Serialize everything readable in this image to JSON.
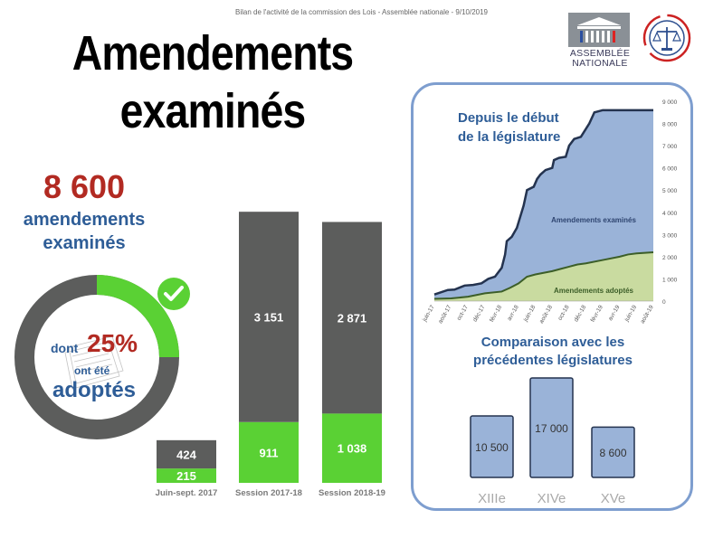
{
  "header": {
    "caption": "Bilan de l'activité de la commission des Lois - Assemblée nationale - 9/10/2019"
  },
  "title": {
    "line1": "Amendements",
    "line2": "examinés"
  },
  "logos": {
    "assemblee_line1": "ASSEMBLÉE",
    "assemblee_line2": "NATIONALE"
  },
  "kpi": {
    "number": "8 600",
    "label_line1": "amendements",
    "label_line2": "examinés",
    "donut_pct": "25%",
    "donut_fraction": 0.25,
    "donut_dont": "dont",
    "donut_mid": "ont été",
    "donut_adopted": "adoptés"
  },
  "colors": {
    "gray": "#5c5d5c",
    "green": "#5ad134",
    "blue_fill": "#9ab3d8",
    "blue_line": "#24334f",
    "green_fill": "#c9dba0",
    "green_line": "#3c5e28",
    "red": "#b22a22",
    "blue_text": "#2e5d97",
    "panel_border": "#7e9ecf"
  },
  "chart_data": [
    {
      "type": "bar",
      "title": "",
      "categories": [
        "Juin-sept. 2017",
        "Session 2017-18",
        "Session 2018-19"
      ],
      "series": [
        {
          "name": "",
          "values": [
            215,
            911,
            1038
          ],
          "labels": [
            "215",
            "911",
            "1 038"
          ],
          "color": "#5ad134"
        },
        {
          "name": "",
          "values": [
            424,
            3151,
            2871
          ],
          "labels": [
            "424",
            "3 151",
            "2 871"
          ],
          "color": "#5c5d5c"
        }
      ],
      "stacked": true,
      "ylim": [
        0,
        4200
      ]
    },
    {
      "type": "area",
      "title": "Depuis le début de la législature",
      "title_line1": "Depuis le début",
      "title_line2": "de la législature",
      "x": [
        "juin-17",
        "août-17",
        "oct-17",
        "déc-17",
        "févr-18",
        "avr-18",
        "juin-18",
        "août-18",
        "oct-18",
        "déc-18",
        "févr-19",
        "avr-19",
        "juin-19",
        "août-19"
      ],
      "yticks": [
        "0",
        "1 000",
        "2 000",
        "3 000",
        "4 000",
        "5 000",
        "6 000",
        "7 000",
        "8 000",
        "9 000"
      ],
      "ylim": [
        0,
        9000
      ],
      "series": [
        {
          "name": "Amendements examinés",
          "color": "#9ab3d8",
          "line": "#24334f",
          "values": [
            [
              0,
              300
            ],
            [
              0.8,
              500
            ],
            [
              1.2,
              520
            ],
            [
              1.8,
              700
            ],
            [
              2.3,
              730
            ],
            [
              2.8,
              800
            ],
            [
              3.2,
              1000
            ],
            [
              3.6,
              1100
            ],
            [
              4.0,
              1500
            ],
            [
              4.2,
              2100
            ],
            [
              4.3,
              2700
            ],
            [
              4.6,
              2900
            ],
            [
              4.9,
              3300
            ],
            [
              5.1,
              3800
            ],
            [
              5.3,
              4300
            ],
            [
              5.5,
              5000
            ],
            [
              5.9,
              5150
            ],
            [
              6.1,
              5500
            ],
            [
              6.3,
              5700
            ],
            [
              6.6,
              5900
            ],
            [
              7.0,
              6000
            ],
            [
              7.1,
              6350
            ],
            [
              7.4,
              6450
            ],
            [
              7.8,
              6500
            ],
            [
              8.0,
              7000
            ],
            [
              8.3,
              7300
            ],
            [
              8.7,
              7400
            ],
            [
              9.2,
              8000
            ],
            [
              9.5,
              8500
            ],
            [
              10.0,
              8600
            ],
            [
              11.0,
              8600
            ],
            [
              13.0,
              8600
            ]
          ]
        },
        {
          "name": "Amendements adoptés",
          "color": "#c9dba0",
          "line": "#3c5e28",
          "values": [
            [
              0,
              100
            ],
            [
              1,
              120
            ],
            [
              2,
              200
            ],
            [
              3,
              350
            ],
            [
              4,
              430
            ],
            [
              4.5,
              600
            ],
            [
              5,
              800
            ],
            [
              5.5,
              1100
            ],
            [
              6,
              1200
            ],
            [
              7,
              1350
            ],
            [
              7.5,
              1450
            ],
            [
              8,
              1550
            ],
            [
              8.5,
              1650
            ],
            [
              9,
              1700
            ],
            [
              10,
              1850
            ],
            [
              11,
              2000
            ],
            [
              11.5,
              2100
            ],
            [
              12,
              2150
            ],
            [
              13,
              2200
            ]
          ]
        }
      ]
    },
    {
      "type": "bar",
      "title": "Comparaison avec les précédentes législatures",
      "title_line1": "Comparaison avec les",
      "title_line2": "précédentes législatures",
      "categories": [
        "XIIIe",
        "XIVe",
        "XVe"
      ],
      "values": [
        10500,
        17000,
        8600
      ],
      "labels": [
        "10 500",
        "17 000",
        "8 600"
      ],
      "ylim": [
        0,
        17000
      ]
    }
  ]
}
